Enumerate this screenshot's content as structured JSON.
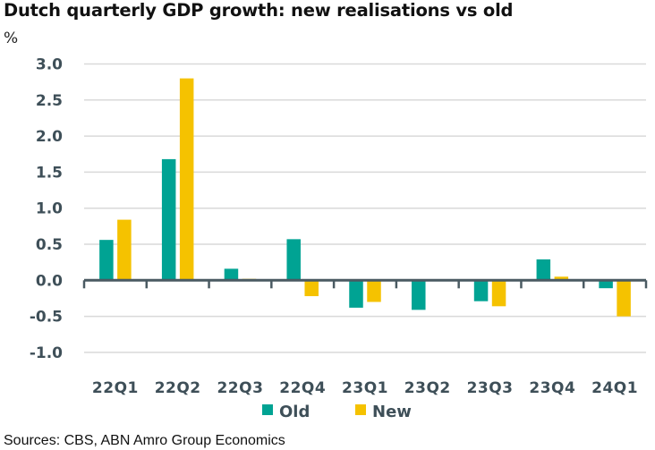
{
  "chart_data": {
    "type": "bar",
    "title": "Dutch quarterly GDP growth: new realisations vs old",
    "ylabel": "%",
    "xlabel": "",
    "categories": [
      "22Q1",
      "22Q2",
      "22Q3",
      "22Q4",
      "23Q1",
      "23Q2",
      "23Q3",
      "23Q4",
      "24Q1"
    ],
    "series": [
      {
        "name": "Old",
        "color": "#00a393",
        "values": [
          0.56,
          1.68,
          0.16,
          0.57,
          -0.38,
          -0.41,
          -0.29,
          0.29,
          -0.11
        ]
      },
      {
        "name": "New",
        "color": "#f5c200",
        "values": [
          0.84,
          2.8,
          0.02,
          -0.22,
          -0.3,
          0.0,
          -0.36,
          0.05,
          -0.5
        ]
      }
    ],
    "ylim": [
      -1.0,
      3.0
    ],
    "yticks": [
      3.0,
      2.5,
      2.0,
      1.5,
      1.0,
      0.5,
      0.0,
      -0.5,
      -1.0
    ],
    "ytick_labels": [
      "3.0",
      "2.5",
      "2.0",
      "1.5",
      "1.0",
      "0.5",
      "0.0",
      "-0.5",
      "-1.0"
    ],
    "grid": true,
    "legend_position": "bottom-center",
    "source": "Sources: CBS, ABN Amro Group Economics"
  }
}
